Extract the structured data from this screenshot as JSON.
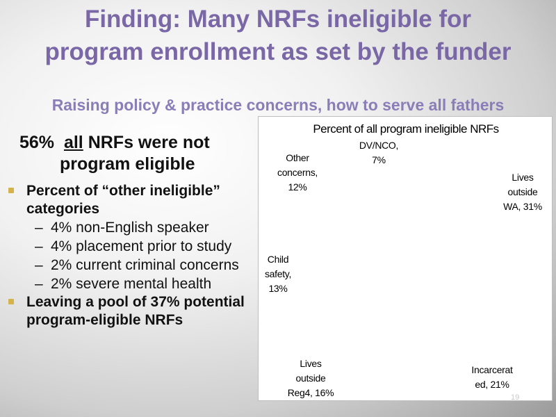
{
  "slide": {
    "title_line1": "Finding: Many NRFs ineligible for",
    "title_line2": "program enrollment as set by the funder",
    "subtitle": "Raising policy & practice concerns, how to serve all fathers",
    "headline": {
      "pct": "56%",
      "all": "all",
      "rest_line1": "NRFs were not",
      "rest_line2": "program eligible"
    },
    "bullets": [
      {
        "text": "Percent of “other ineligible” categories",
        "subs": [
          "4% non-English speaker",
          "4% placement prior to study",
          "2% current criminal concerns",
          "2% severe mental health"
        ]
      },
      {
        "text": "Leaving a pool of 37% potential program-eligible NRFs",
        "subs": []
      }
    ],
    "page_number": "19",
    "colors": {
      "title": "#7a68a6",
      "subtitle": "#8a7db8",
      "bullet_marker": "#d6b24a"
    }
  },
  "chart_data": {
    "type": "pie",
    "title": "Percent of all program ineligible NRFs",
    "slices": [
      {
        "label_l1": "Lives",
        "label_l2": "outside",
        "label_l3": "WA, 31%",
        "category": "Lives outside WA",
        "value": 31
      },
      {
        "label_l1": "Incarcerat",
        "label_l2": "ed, 21%",
        "category": "Incarcerated",
        "value": 21
      },
      {
        "label_l1": "Lives",
        "label_l2": "outside",
        "label_l3": "Reg4, 16%",
        "category": "Lives outside Reg4",
        "value": 16
      },
      {
        "label_l1": "Child",
        "label_l2": "safety,",
        "label_l3": "13%",
        "category": "Child safety",
        "value": 13
      },
      {
        "label_l1": "Other",
        "label_l2": "concerns,",
        "label_l3": "12%",
        "category": "Other concerns",
        "value": 12
      },
      {
        "label_l1": "DV/NCO,",
        "label_l2": "7%",
        "category": "DV/NCO",
        "value": 7
      }
    ]
  }
}
